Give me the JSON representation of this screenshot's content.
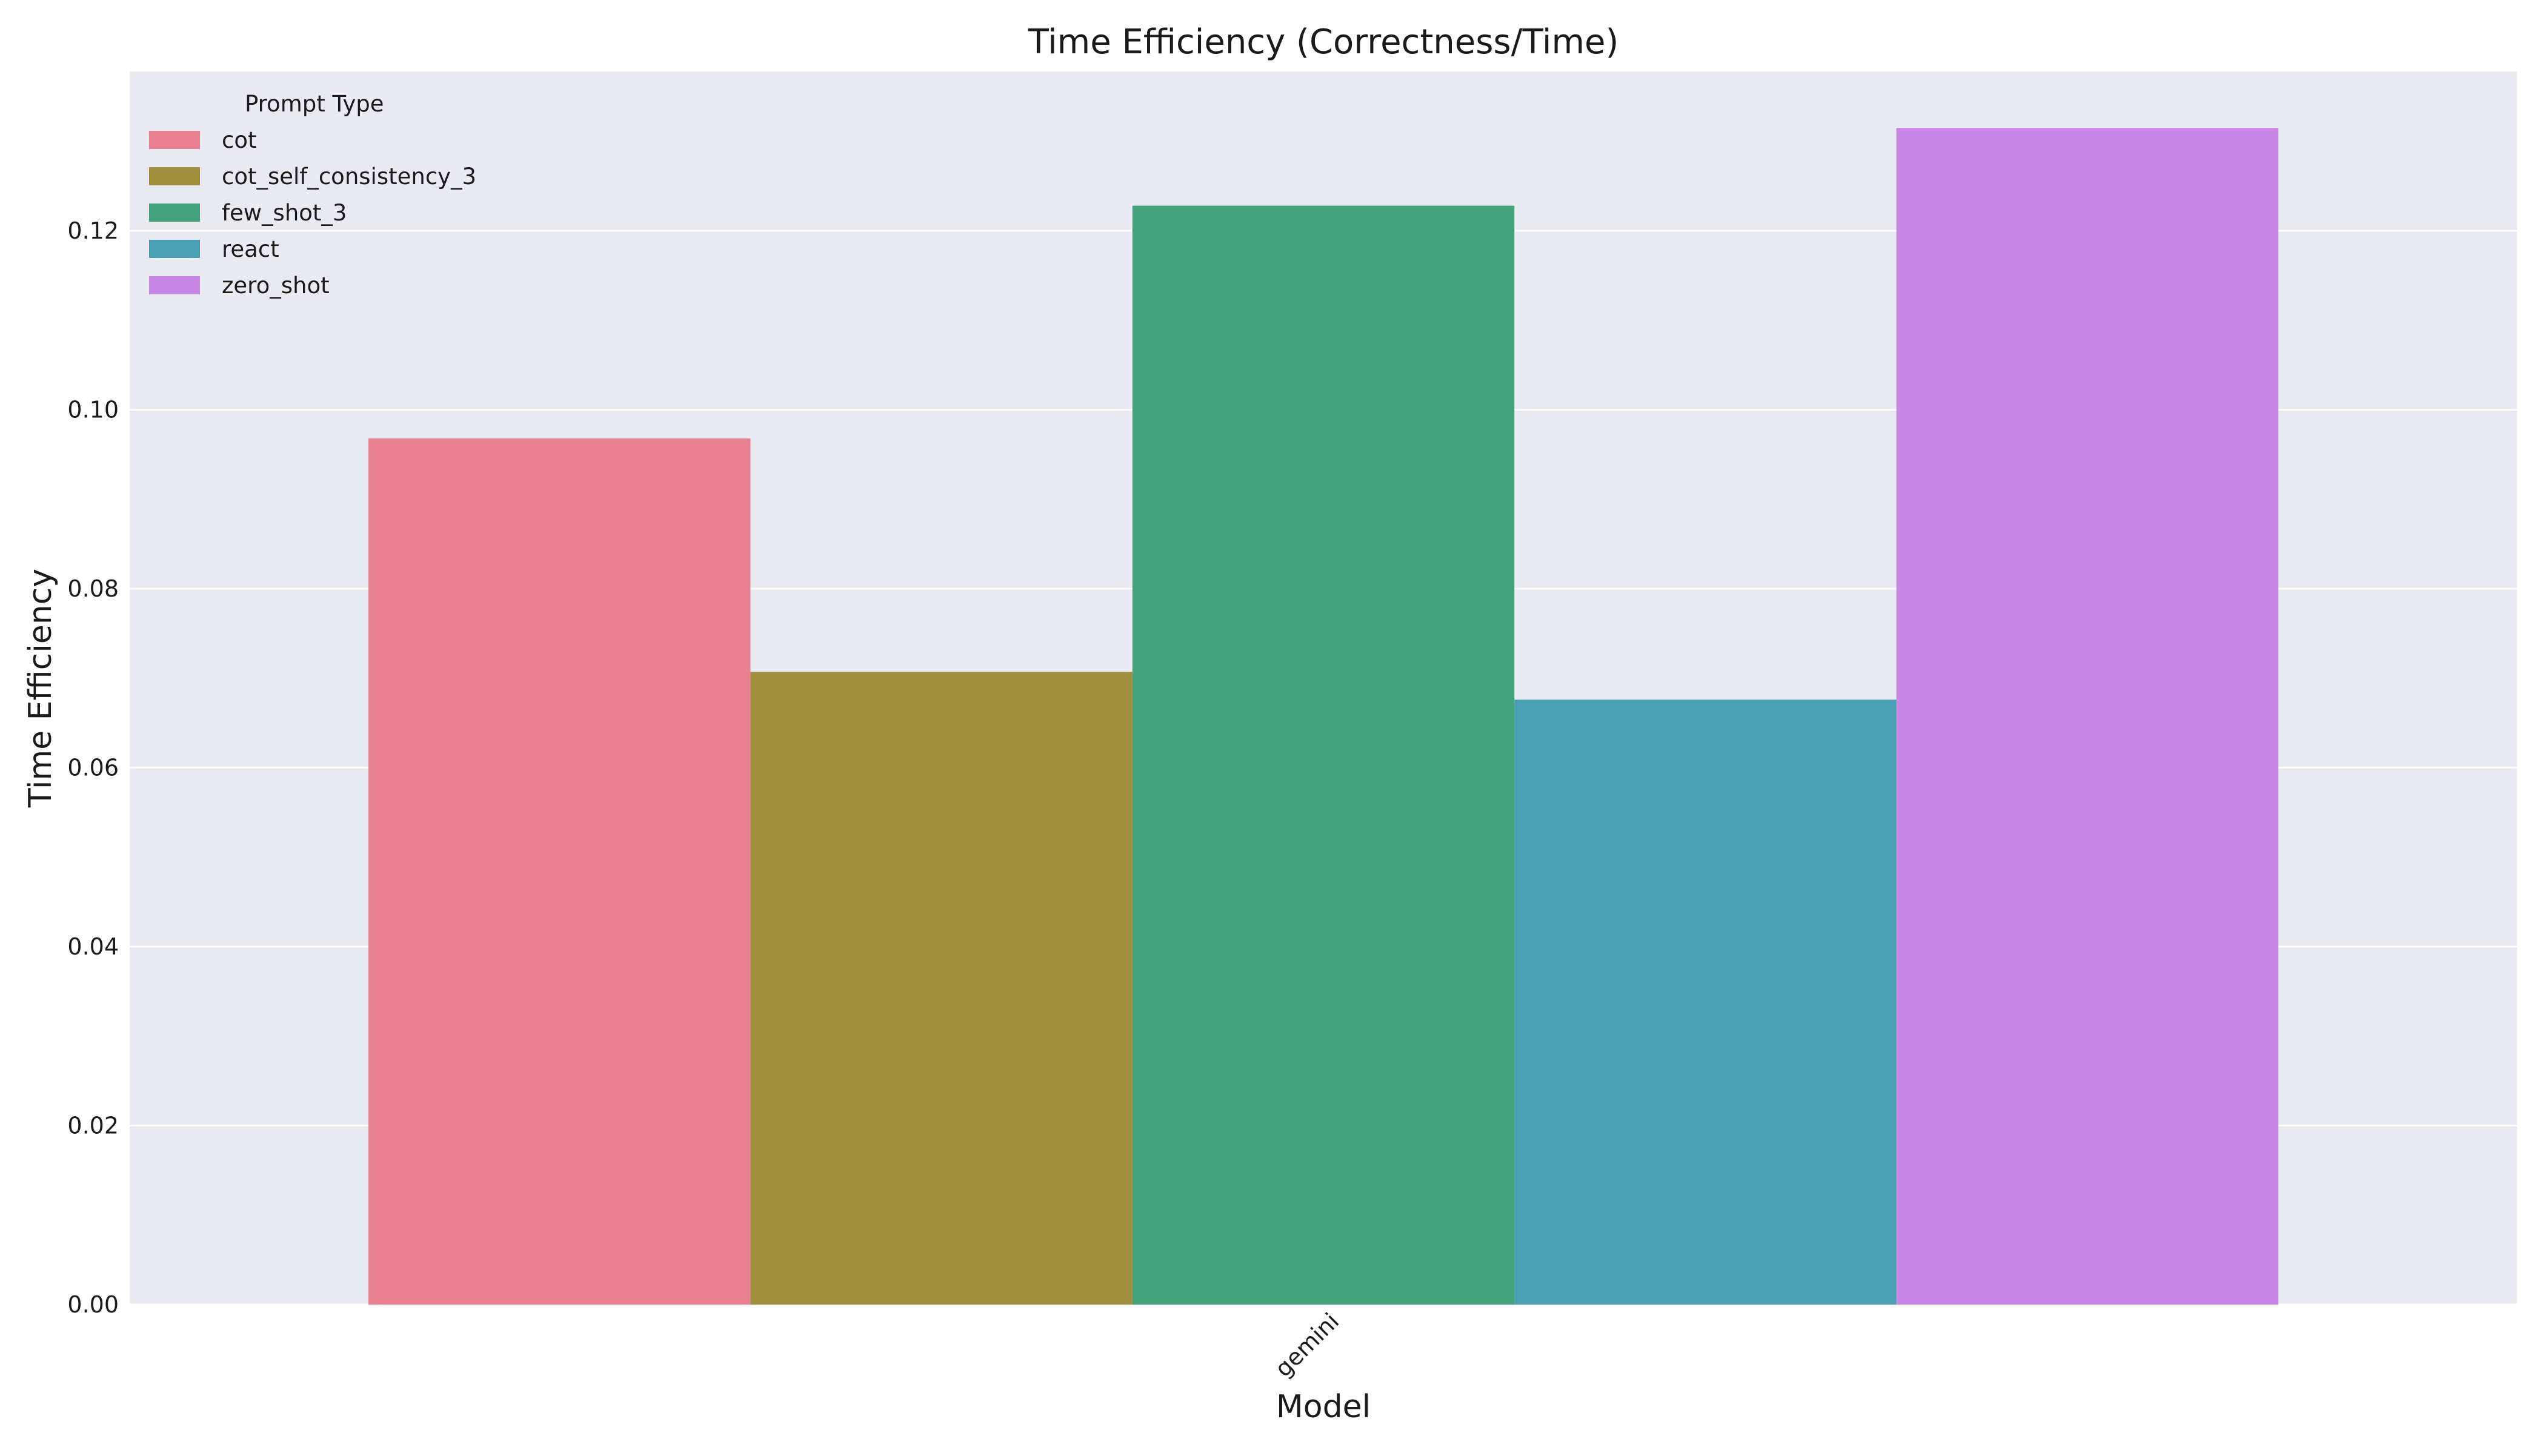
{
  "chart_data": {
    "type": "bar",
    "title": "Time Efficiency (Correctness/Time)",
    "xlabel": "Model",
    "ylabel": "Time Efficiency",
    "categories": [
      "gemini"
    ],
    "series": [
      {
        "name": "cot",
        "values": [
          0.0968
        ],
        "color": "#e7808f"
      },
      {
        "name": "cot_self_consistency_3",
        "values": [
          0.0707
        ],
        "color": "#a08f3f"
      },
      {
        "name": "few_shot_3",
        "values": [
          0.1228
        ],
        "color": "#43a27b"
      },
      {
        "name": "react",
        "values": [
          0.0676
        ],
        "color": "#4a9fb5"
      },
      {
        "name": "zero_shot",
        "values": [
          0.1315
        ],
        "color": "#c789e5"
      }
    ],
    "ylim": [
      0,
      0.1378
    ],
    "yticks": [
      0.0,
      0.02,
      0.04,
      0.06,
      0.08,
      0.1,
      0.12
    ],
    "ytick_labels": [
      "0.00",
      "0.02",
      "0.04",
      "0.06",
      "0.08",
      "0.10",
      "0.12"
    ],
    "legend": {
      "title": "Prompt Type",
      "placement": "top-left"
    },
    "grid": true,
    "background": "#eaeaf2",
    "grid_color": "#ffffff"
  }
}
